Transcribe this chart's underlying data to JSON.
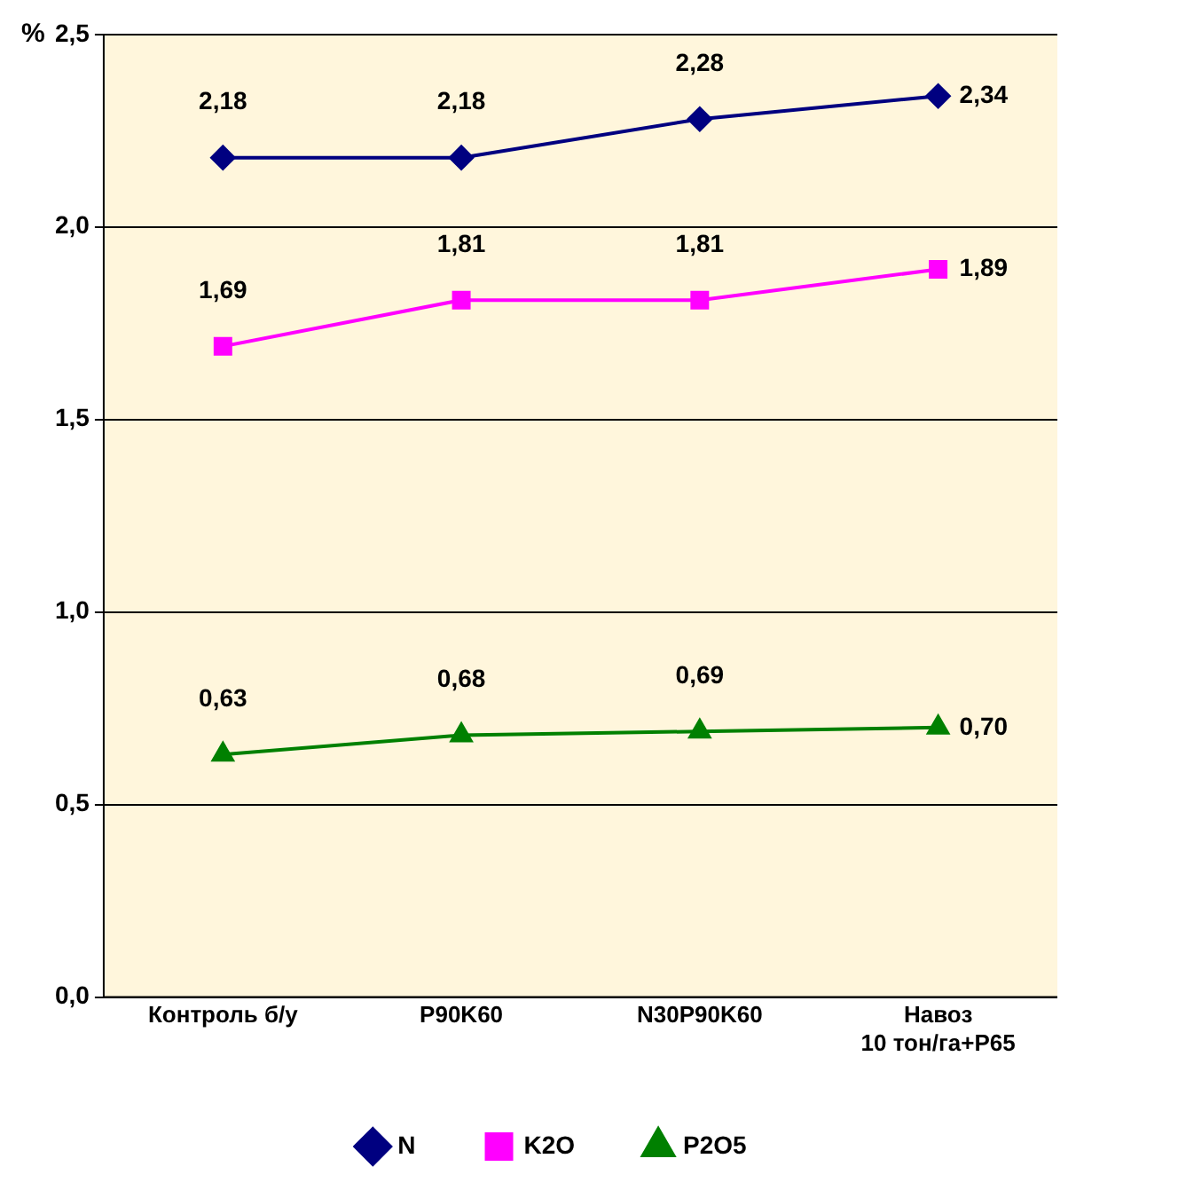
{
  "chart_data": {
    "type": "line",
    "ylabel": "%",
    "categories": [
      "Контроль б/у",
      "P90K60",
      "N30P90K60",
      "Навоз\n10 тон/га+P65"
    ],
    "series": [
      {
        "name": "N",
        "color": "#000080",
        "marker": "diamond",
        "values": [
          2.18,
          2.18,
          2.28,
          2.34
        ],
        "value_labels": [
          "2,18",
          "2,18",
          "2,28",
          "2,34"
        ]
      },
      {
        "name": "K2O",
        "color": "#ff00ff",
        "marker": "square",
        "values": [
          1.69,
          1.81,
          1.81,
          1.89
        ],
        "value_labels": [
          "1,69",
          "1,81",
          "1,81",
          "1,89"
        ]
      },
      {
        "name": "P2O5",
        "color": "#008000",
        "marker": "triangle",
        "values": [
          0.63,
          0.68,
          0.69,
          0.7
        ],
        "value_labels": [
          "0,63",
          "0,68",
          "0,69",
          "0,70"
        ]
      }
    ],
    "ylim": [
      0,
      2.5
    ],
    "yticks": [
      {
        "value": 0,
        "label": "0,0"
      },
      {
        "value": 0.5,
        "label": "0,5"
      },
      {
        "value": 1,
        "label": "1,0"
      },
      {
        "value": 1.5,
        "label": "1,5"
      },
      {
        "value": 2,
        "label": "2,0"
      },
      {
        "value": 2.5,
        "label": "2,5"
      }
    ],
    "grid": "y",
    "legend": "bottom"
  }
}
